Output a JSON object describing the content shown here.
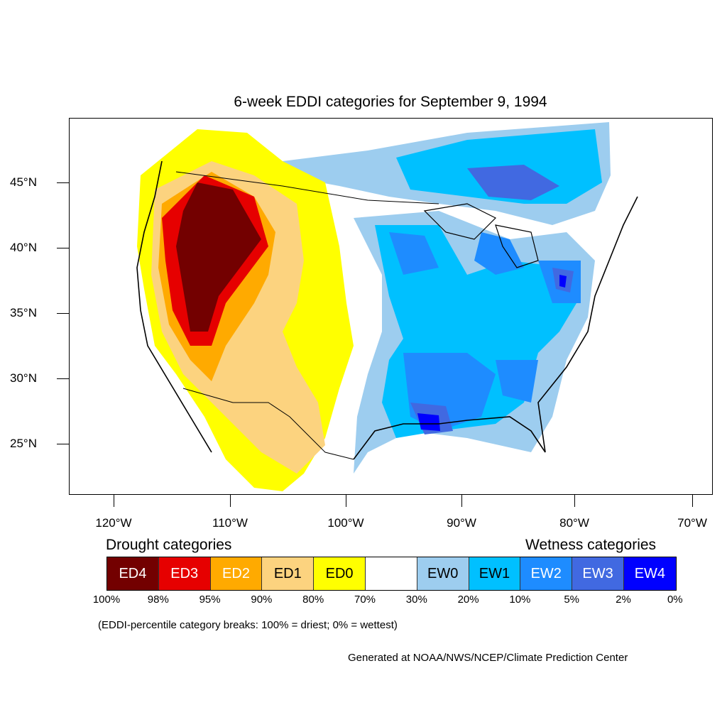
{
  "title": "6-week EDDI categories for September 9, 1994",
  "lat_labels": [
    "45°N",
    "40°N",
    "35°N",
    "30°N",
    "25°N"
  ],
  "lon_labels": [
    "120°W",
    "110°W",
    "100°W",
    "90°W",
    "80°W",
    "70°W"
  ],
  "legend": {
    "drought_heading": "Drought categories",
    "wetness_heading": "Wetness categories",
    "categories": [
      {
        "label": "ED4",
        "color": "#730000",
        "text_color": "#ffffff"
      },
      {
        "label": "ED3",
        "color": "#e60000",
        "text_color": "#ffffff"
      },
      {
        "label": "ED2",
        "color": "#ffaa00",
        "text_color": "#ffffff"
      },
      {
        "label": "ED1",
        "color": "#fcd37f",
        "text_color": "#000000"
      },
      {
        "label": "ED0",
        "color": "#ffff00",
        "text_color": "#000000"
      },
      {
        "label": "",
        "color": "#ffffff",
        "text_color": "#000000"
      },
      {
        "label": "EW0",
        "color": "#9dcdef",
        "text_color": "#000000"
      },
      {
        "label": "EW1",
        "color": "#00c0ff",
        "text_color": "#000000"
      },
      {
        "label": "EW2",
        "color": "#1e8cff",
        "text_color": "#ffffff"
      },
      {
        "label": "EW3",
        "color": "#4169e1",
        "text_color": "#ffffff"
      },
      {
        "label": "EW4",
        "color": "#0000ff",
        "text_color": "#ffffff"
      }
    ],
    "breaks": [
      "100%",
      "98%",
      "95%",
      "90%",
      "80%",
      "70%",
      "30%",
      "20%",
      "10%",
      "5%",
      "2%",
      "0%"
    ]
  },
  "note": "(EDDI-percentile category breaks: 100% = driest; 0% = wettest)",
  "credit": "Generated at NOAA/NWS/NCEP/Climate Prediction Center"
}
